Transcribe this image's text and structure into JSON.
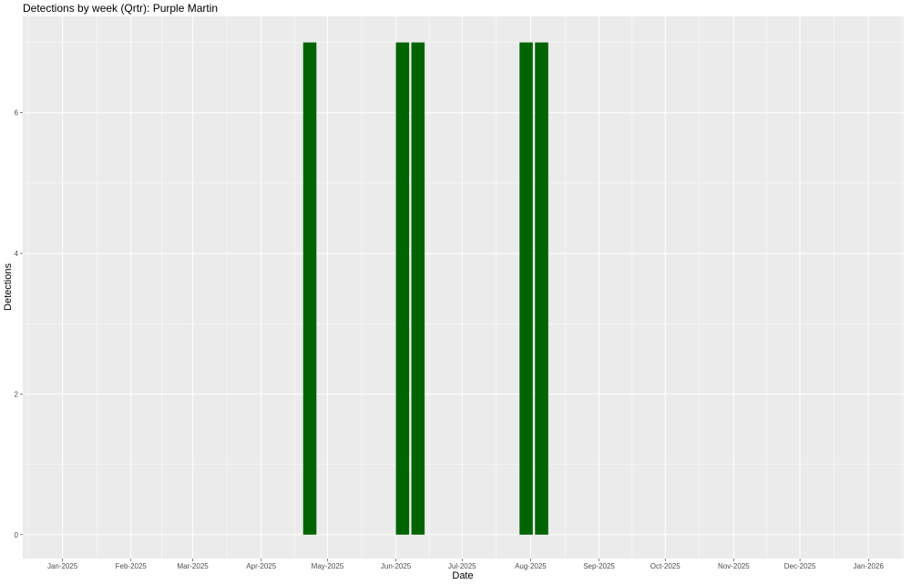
{
  "chart_data": {
    "type": "bar",
    "title": "Detections by week (Qrtr): Purple Martin",
    "xlabel": "Date",
    "ylabel": "Detections",
    "x": [
      "2025-04-23",
      "2025-06-04",
      "2025-06-11",
      "2025-07-30",
      "2025-08-06"
    ],
    "values": [
      7,
      7,
      7,
      7,
      7
    ],
    "xlim": [
      "2024-12-14",
      "2026-01-17"
    ],
    "ylim": [
      -0.34,
      7.37
    ],
    "x_ticks": [
      {
        "date": "2025-01-01",
        "label": "Jan-2025"
      },
      {
        "date": "2025-02-01",
        "label": "Feb-2025"
      },
      {
        "date": "2025-03-01",
        "label": "Mar-2025"
      },
      {
        "date": "2025-04-01",
        "label": "Apr-2025"
      },
      {
        "date": "2025-05-01",
        "label": "May-2025"
      },
      {
        "date": "2025-06-01",
        "label": "Jun-2025"
      },
      {
        "date": "2025-07-01",
        "label": "Jul-2025"
      },
      {
        "date": "2025-08-01",
        "label": "Aug-2025"
      },
      {
        "date": "2025-09-01",
        "label": "Sep-2025"
      },
      {
        "date": "2025-10-01",
        "label": "Oct-2025"
      },
      {
        "date": "2025-11-01",
        "label": "Nov-2025"
      },
      {
        "date": "2025-12-01",
        "label": "Dec-2025"
      },
      {
        "date": "2026-01-01",
        "label": "Jan-2026"
      }
    ],
    "y_ticks": [
      0,
      2,
      4,
      6
    ],
    "grid": true,
    "colors": {
      "bar": "#006400",
      "panel": "#ebebeb",
      "grid": "#ffffff"
    }
  }
}
